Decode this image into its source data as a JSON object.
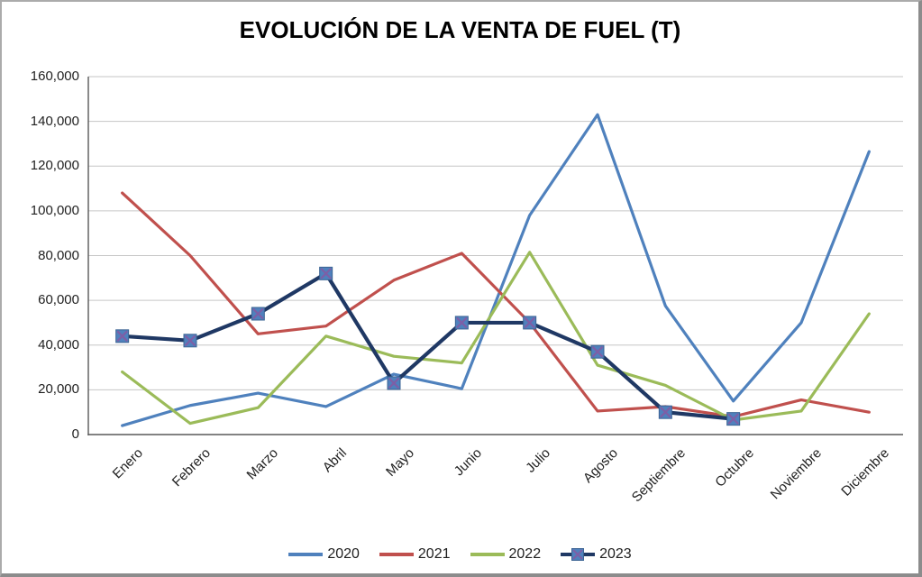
{
  "chart_data": {
    "type": "line",
    "title": "EVOLUCIÓN DE LA VENTA DE FUEL (T)",
    "categories": [
      "Enero",
      "Febrero",
      "Marzo",
      "Abril",
      "Mayo",
      "Junio",
      "Julio",
      "Agosto",
      "Septiembre",
      "Octubre",
      "Noviembre",
      "Diciembre"
    ],
    "series": [
      {
        "name": "2020",
        "color": "#4F81BD",
        "marker": "none",
        "values": [
          4000,
          13000,
          18500,
          12500,
          27000,
          20500,
          98000,
          143000,
          57500,
          15000,
          50000,
          126500
        ]
      },
      {
        "name": "2021",
        "color": "#C0504D",
        "marker": "none",
        "values": [
          108000,
          80000,
          45000,
          48500,
          69000,
          81000,
          50000,
          10500,
          12500,
          8000,
          15500,
          10000
        ]
      },
      {
        "name": "2022",
        "color": "#9BBB59",
        "marker": "none",
        "values": [
          28000,
          5000,
          12000,
          44000,
          35000,
          32000,
          81500,
          31000,
          22000,
          6500,
          10500,
          54000
        ]
      },
      {
        "name": "2023",
        "color": "#1F3864",
        "marker": "x-square",
        "marker_fill": "#4F81BD",
        "marker_x_color": "#7D5FA6",
        "values": [
          44000,
          42000,
          54000,
          72000,
          23000,
          50000,
          50000,
          37000,
          10000,
          7000,
          null,
          null
        ]
      }
    ],
    "xlabel": "",
    "ylabel": "",
    "ylim": [
      0,
      160000
    ],
    "ytick_step": 20000,
    "ytick_labels": [
      "0",
      "20,000",
      "40,000",
      "60,000",
      "80,000",
      "100,000",
      "120,000",
      "140,000",
      "160,000"
    ],
    "grid": true,
    "legend_position": "bottom",
    "axis_color": "#595959",
    "gridline_color": "#c6c6c6"
  }
}
